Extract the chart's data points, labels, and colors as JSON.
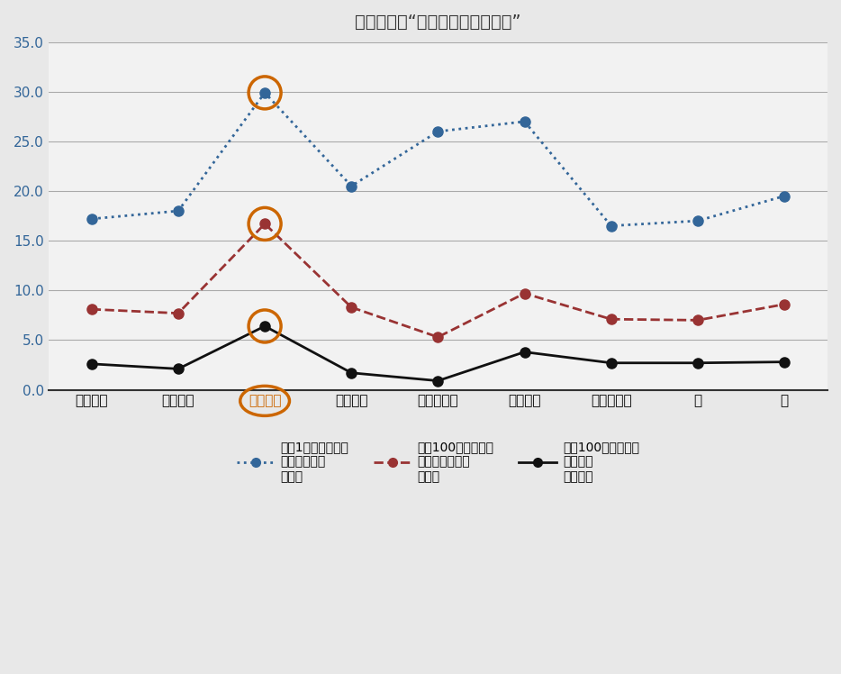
{
  "title": "数字で見る“しらかわものづくり”",
  "categories": [
    "県北地域",
    "県中地域",
    "県南地域",
    "会津地域",
    "南会津地域",
    "相双地域",
    "いわき地域",
    "合",
    "計"
  ],
  "line1": [
    17.2,
    18.0,
    29.9,
    20.5,
    26.0,
    27.0,
    16.5,
    17.0,
    19.5
  ],
  "line2": [
    8.1,
    7.7,
    16.7,
    8.3,
    5.3,
    9.7,
    7.1,
    7.0,
    8.6
  ],
  "line3": [
    2.6,
    2.1,
    6.4,
    1.7,
    0.9,
    3.8,
    2.7,
    2.7,
    2.8
  ],
  "highlight_index": 2,
  "highlight_color": "#cc6600",
  "line1_color": "#336699",
  "line2_color": "#993333",
  "line3_color": "#111111",
  "ylim": [
    0.0,
    35.0
  ],
  "yticks": [
    0.0,
    5.0,
    10.0,
    15.0,
    20.0,
    25.0,
    30.0,
    35.0
  ],
  "legend1": "人口1万人あたりの\n製造業事業所\n（社）",
  "legend2": "人口100人あたりの\n製造業従事者数\n（人）",
  "legend3": "人口100人あたりの\n出荷額数\n（億円）",
  "background_color": "#e8e8e8",
  "plot_bg_color": "#f2f2f2",
  "marker_size": 8,
  "line_width": 2.0,
  "title_fontsize": 14,
  "tick_fontsize": 11,
  "legend_fontsize": 10
}
